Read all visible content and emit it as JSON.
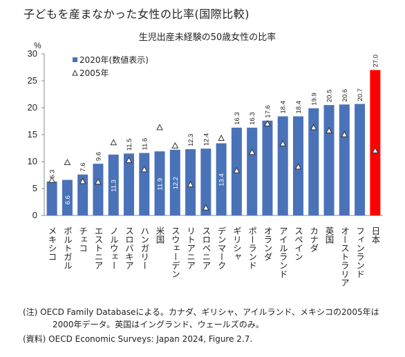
{
  "page": {
    "title": "子どもを産まなかった女性の比率(国際比較)",
    "notes": [
      "(注) OECD Family Databaseによる。カナダ、ギリシャ、アイルランド、メキシコの2005年は",
      "2000年データ。英国はイングランド、ウェールズのみ。",
      "(資料) OECD Economic Surveys: Japan 2024, Figure 2.7."
    ]
  },
  "chart_data": {
    "type": "bar",
    "title": "生児出産未経験の50歳女性の比率",
    "ylabel": "%",
    "xlabel": "",
    "ylim": [
      0,
      30
    ],
    "yticks": [
      0,
      5,
      10,
      15,
      20,
      25,
      30
    ],
    "grid": false,
    "legend_position": "top-left",
    "categories": [
      "メキシコ",
      "ポルトガル",
      "チェコ",
      "エストニア",
      "ノルウェー",
      "スロバキア",
      "ハンガリー",
      "米国",
      "スウェーデン",
      "リトアニア",
      "スロベニア",
      "デンマーク",
      "ギリシャ",
      "ポーランド",
      "オランダ",
      "アイルランド",
      "スペイン",
      "カナダ",
      "英国",
      "オーストラリア",
      "フィンランド",
      "日本"
    ],
    "series": [
      {
        "name": "2020年(数値表示)",
        "marker": "bar",
        "values": [
          6.3,
          6.6,
          7.6,
          9.6,
          11.3,
          11.5,
          11.6,
          11.9,
          12.2,
          12.3,
          12.4,
          13.4,
          16.3,
          16.3,
          17.6,
          18.4,
          18.4,
          19.9,
          20.5,
          20.6,
          20.7,
          27.0
        ],
        "labels": [
          "6.3",
          "6.6",
          "7.6",
          "9.6",
          "11.3",
          "11.5",
          "11.6",
          "11.9",
          "12.2",
          "12.3",
          "12.4",
          "13.4",
          "16.3",
          "16.3",
          "17.6",
          "18.4",
          "18.4",
          "19.9",
          "20.5",
          "20.6",
          "20.7",
          "27.0"
        ],
        "label_inside": [
          false,
          true,
          false,
          false,
          true,
          false,
          false,
          true,
          true,
          false,
          false,
          true,
          false,
          false,
          false,
          false,
          false,
          false,
          false,
          false,
          false,
          false
        ]
      },
      {
        "name": "2005年",
        "marker": "triangle",
        "values": [
          6.5,
          9.8,
          6.3,
          6.2,
          13.5,
          10.2,
          8.5,
          16.3,
          12.9,
          5.7,
          1.4,
          14.3,
          8.3,
          11.7,
          17.0,
          13.3,
          9.0,
          16.3,
          15.7,
          15.0,
          null,
          12.0
        ]
      }
    ],
    "colors": {
      "bar": "#4a72b8",
      "highlight": "#ff0000",
      "highlight_index": 21
    }
  }
}
